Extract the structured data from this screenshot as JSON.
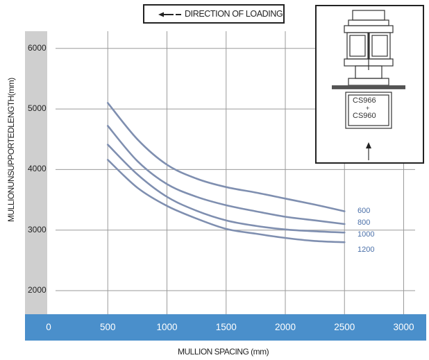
{
  "chart_data": {
    "type": "line",
    "xlabel": "MULLION SPACING (mm)",
    "ylabel": "MULLIONUNSUPPORTEDLENGTH(mm)",
    "x_ticks": [
      "0",
      "500",
      "1000",
      "1500",
      "2000",
      "2500",
      "3000"
    ],
    "y_ticks": [
      "2000",
      "3000",
      "4000",
      "5000",
      "6000"
    ],
    "xlim": [
      0,
      3000
    ],
    "ylim": [
      1600,
      6200
    ],
    "grid": true,
    "legend": "DIRECTION OF LOADING",
    "x": [
      500,
      750,
      1000,
      1250,
      1500,
      1750,
      2000,
      2250,
      2500
    ],
    "series": [
      {
        "name": "600",
        "values": [
          5100,
          4500,
          4080,
          3850,
          3710,
          3620,
          3520,
          3420,
          3310
        ]
      },
      {
        "name": "800",
        "values": [
          4720,
          4140,
          3760,
          3550,
          3410,
          3310,
          3220,
          3160,
          3100
        ]
      },
      {
        "name": "1000",
        "values": [
          4410,
          3920,
          3550,
          3320,
          3160,
          3070,
          3010,
          2980,
          2960
        ]
      },
      {
        "name": "1200",
        "values": [
          4160,
          3700,
          3400,
          3190,
          3020,
          2940,
          2870,
          2820,
          2800
        ]
      }
    ],
    "series_color": "#7f8fb0",
    "label_color": "#4a6fa8",
    "axis_band_color": "#4a8fcb",
    "y_band_color": "#cfcfcf"
  },
  "inset": {
    "label_top": "CS966",
    "label_plus": "+",
    "label_bottom": "CS960"
  }
}
